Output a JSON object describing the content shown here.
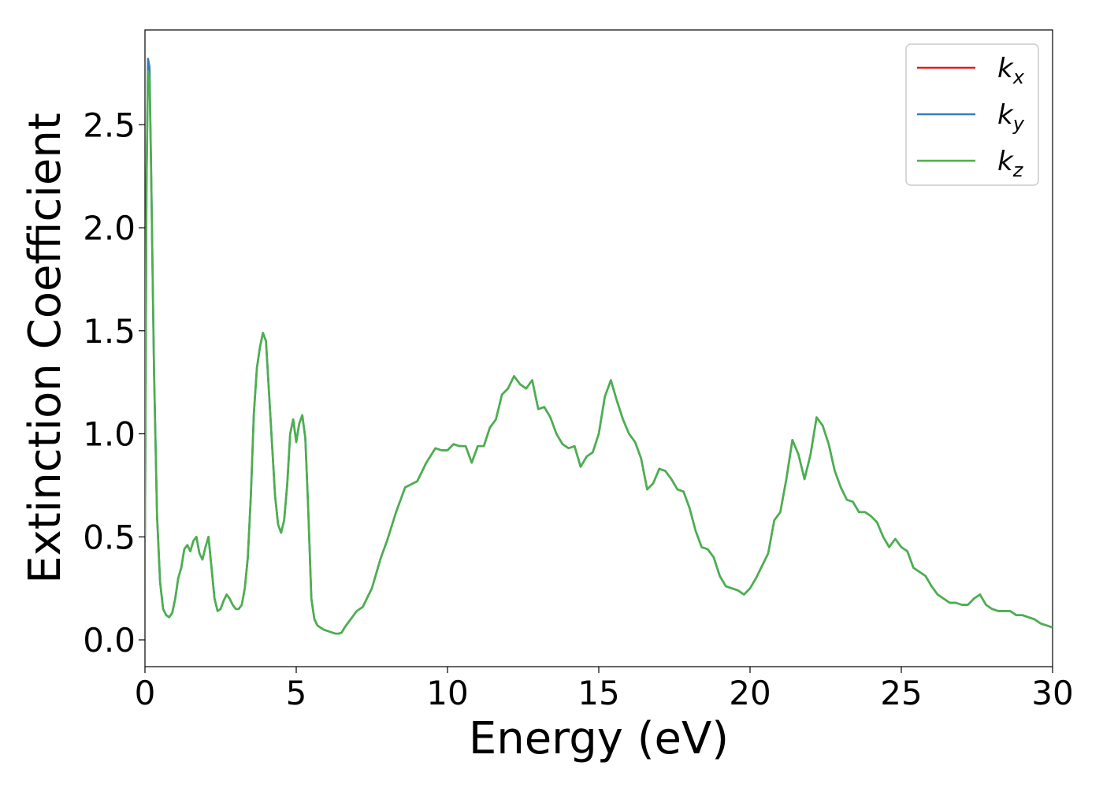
{
  "chart_data": {
    "type": "line",
    "title": "",
    "xlabel": "Energy (eV)",
    "ylabel": "Extinction Coefficient",
    "xlim": [
      0,
      30
    ],
    "ylim": [
      -0.13,
      2.96
    ],
    "xticks": [
      0,
      5,
      10,
      15,
      20,
      25,
      30
    ],
    "xtick_labels": [
      "0",
      "5",
      "10",
      "15",
      "20",
      "25",
      "30"
    ],
    "yticks": [
      0.0,
      0.5,
      1.0,
      1.5,
      2.0,
      2.5
    ],
    "ytick_labels": [
      "0.0",
      "0.5",
      "1.0",
      "1.5",
      "2.0",
      "2.5"
    ],
    "grid": false,
    "legend_position": "top-right",
    "series": [
      {
        "name": "k",
        "subscript": "x",
        "color": "#e41a1c",
        "x": [
          0,
          0.05,
          0.1,
          0.15,
          0.2,
          0.3,
          0.4,
          0.5,
          0.6,
          0.7,
          0.8,
          0.9,
          1.0,
          1.1,
          1.2,
          1.3,
          1.4,
          1.5,
          1.6,
          1.7,
          1.8,
          1.9,
          2.0,
          2.1,
          2.2,
          2.3,
          2.4,
          2.5,
          2.6,
          2.7,
          2.8,
          2.9,
          3.0,
          3.1,
          3.2,
          3.3,
          3.4,
          3.5,
          3.6,
          3.7,
          3.8,
          3.9,
          4.0,
          4.1,
          4.2,
          4.3,
          4.4,
          4.5,
          4.6,
          4.7,
          4.8,
          4.9,
          5.0,
          5.1,
          5.2,
          5.3,
          5.4,
          5.5,
          5.6,
          5.7,
          5.8,
          5.9,
          6.0,
          6.1,
          6.2,
          6.3,
          6.4,
          6.5,
          6.6,
          6.8,
          7.0,
          7.2,
          7.5,
          7.8,
          8.0,
          8.3,
          8.6,
          9.0,
          9.3,
          9.6,
          9.8,
          10.0,
          10.2,
          10.4,
          10.6,
          10.8,
          11.0,
          11.2,
          11.4,
          11.6,
          11.8,
          12.0,
          12.2,
          12.4,
          12.6,
          12.8,
          13.0,
          13.2,
          13.4,
          13.6,
          13.8,
          14.0,
          14.2,
          14.4,
          14.6,
          14.8,
          15.0,
          15.2,
          15.4,
          15.6,
          15.8,
          16.0,
          16.2,
          16.4,
          16.6,
          16.8,
          17.0,
          17.2,
          17.4,
          17.6,
          17.8,
          18.0,
          18.2,
          18.4,
          18.6,
          18.8,
          19.0,
          19.2,
          19.4,
          19.6,
          19.8,
          20.0,
          20.2,
          20.4,
          20.6,
          20.8,
          21.0,
          21.2,
          21.4,
          21.6,
          21.8,
          22.0,
          22.2,
          22.4,
          22.6,
          22.8,
          23.0,
          23.2,
          23.4,
          23.6,
          23.8,
          24.0,
          24.2,
          24.4,
          24.6,
          24.8,
          25.0,
          25.2,
          25.4,
          25.6,
          25.8,
          26.0,
          26.2,
          26.4,
          26.6,
          26.8,
          27.0,
          27.2,
          27.4,
          27.6,
          27.8,
          28.0,
          28.2,
          28.4,
          28.6,
          28.8,
          29.0,
          29.2,
          29.4,
          29.6,
          29.8,
          30.0
        ],
        "y": [
          0.5,
          2.2,
          2.78,
          2.75,
          2.3,
          1.3,
          0.6,
          0.28,
          0.15,
          0.12,
          0.11,
          0.13,
          0.2,
          0.3,
          0.35,
          0.44,
          0.46,
          0.43,
          0.48,
          0.5,
          0.42,
          0.39,
          0.45,
          0.5,
          0.35,
          0.2,
          0.14,
          0.15,
          0.19,
          0.22,
          0.2,
          0.17,
          0.15,
          0.15,
          0.17,
          0.25,
          0.4,
          0.7,
          1.1,
          1.32,
          1.42,
          1.49,
          1.45,
          1.2,
          0.95,
          0.7,
          0.56,
          0.52,
          0.58,
          0.75,
          1.0,
          1.07,
          0.96,
          1.05,
          1.09,
          0.98,
          0.62,
          0.2,
          0.1,
          0.07,
          0.06,
          0.05,
          0.045,
          0.04,
          0.035,
          0.03,
          0.03,
          0.035,
          0.06,
          0.1,
          0.14,
          0.16,
          0.25,
          0.4,
          0.48,
          0.62,
          0.74,
          0.77,
          0.86,
          0.93,
          0.92,
          0.92,
          0.95,
          0.94,
          0.94,
          0.86,
          0.94,
          0.94,
          1.03,
          1.07,
          1.19,
          1.22,
          1.28,
          1.24,
          1.22,
          1.26,
          1.12,
          1.13,
          1.08,
          1.0,
          0.95,
          0.93,
          0.94,
          0.84,
          0.89,
          0.91,
          1.0,
          1.18,
          1.26,
          1.16,
          1.07,
          1.0,
          0.96,
          0.88,
          0.73,
          0.76,
          0.83,
          0.82,
          0.78,
          0.73,
          0.72,
          0.64,
          0.53,
          0.45,
          0.44,
          0.4,
          0.31,
          0.26,
          0.25,
          0.24,
          0.22,
          0.25,
          0.3,
          0.36,
          0.42,
          0.58,
          0.62,
          0.78,
          0.97,
          0.9,
          0.78,
          0.9,
          1.08,
          1.04,
          0.95,
          0.82,
          0.74,
          0.68,
          0.67,
          0.62,
          0.62,
          0.6,
          0.57,
          0.5,
          0.45,
          0.49,
          0.45,
          0.43,
          0.35,
          0.33,
          0.31,
          0.26,
          0.22,
          0.2,
          0.18,
          0.18,
          0.17,
          0.17,
          0.2,
          0.22,
          0.17,
          0.15,
          0.14,
          0.14,
          0.14,
          0.12,
          0.12,
          0.11,
          0.1,
          0.08,
          0.07,
          0.06
        ],
        "draw": false
      },
      {
        "name": "k",
        "subscript": "y",
        "color": "#377eb8",
        "x": [
          0,
          0.05,
          0.1,
          0.15,
          0.2,
          0.3,
          0.4,
          0.5,
          0.6,
          0.7,
          0.8,
          0.9,
          1.0,
          1.1,
          1.2,
          1.3,
          1.4,
          1.5,
          1.6,
          1.7,
          1.8,
          1.9,
          2.0,
          2.1,
          2.2,
          2.3,
          2.4,
          2.5,
          2.6,
          2.7,
          2.8,
          2.9,
          3.0,
          3.1,
          3.2,
          3.3,
          3.4,
          3.5,
          3.6,
          3.7,
          3.8,
          3.9,
          4.0,
          4.1,
          4.2,
          4.3,
          4.4,
          4.5,
          4.6,
          4.7,
          4.8,
          4.9,
          5.0,
          5.1,
          5.2,
          5.3,
          5.4,
          5.5,
          5.6,
          5.7,
          5.8,
          5.9,
          6.0,
          6.1,
          6.2,
          6.3,
          6.4,
          6.5,
          6.6,
          6.8,
          7.0,
          7.2,
          7.5,
          7.8,
          8.0,
          8.3,
          8.6,
          9.0,
          9.3,
          9.6,
          9.8,
          10.0,
          10.2,
          10.4,
          10.6,
          10.8,
          11.0,
          11.2,
          11.4,
          11.6,
          11.8,
          12.0,
          12.2,
          12.4,
          12.6,
          12.8,
          13.0,
          13.2,
          13.4,
          13.6,
          13.8,
          14.0,
          14.2,
          14.4,
          14.6,
          14.8,
          15.0,
          15.2,
          15.4,
          15.6,
          15.8,
          16.0,
          16.2,
          16.4,
          16.6,
          16.8,
          17.0,
          17.2,
          17.4,
          17.6,
          17.8,
          18.0,
          18.2,
          18.4,
          18.6,
          18.8,
          19.0,
          19.2,
          19.4,
          19.6,
          19.8,
          20.0,
          20.2,
          20.4,
          20.6,
          20.8,
          21.0,
          21.2,
          21.4,
          21.6,
          21.8,
          22.0,
          22.2,
          22.4,
          22.6,
          22.8,
          23.0,
          23.2,
          23.4,
          23.6,
          23.8,
          24.0,
          24.2,
          24.4,
          24.6,
          24.8,
          25.0,
          25.2,
          25.4,
          25.6,
          25.8,
          26.0,
          26.2,
          26.4,
          26.6,
          26.8,
          27.0,
          27.2,
          27.4,
          27.6,
          27.8,
          28.0,
          28.2,
          28.4,
          28.6,
          28.8,
          29.0,
          29.2,
          29.4,
          29.6,
          29.8,
          30.0
        ],
        "y": [
          0.5,
          2.2,
          2.82,
          2.78,
          2.32,
          1.3,
          0.6,
          0.28,
          0.15,
          0.12,
          0.11,
          0.13,
          0.2,
          0.3,
          0.35,
          0.44,
          0.46,
          0.43,
          0.48,
          0.5,
          0.42,
          0.39,
          0.45,
          0.5,
          0.35,
          0.2,
          0.14,
          0.15,
          0.19,
          0.22,
          0.2,
          0.17,
          0.15,
          0.15,
          0.17,
          0.25,
          0.4,
          0.7,
          1.1,
          1.32,
          1.42,
          1.49,
          1.45,
          1.2,
          0.95,
          0.7,
          0.56,
          0.52,
          0.58,
          0.75,
          1.0,
          1.07,
          0.96,
          1.05,
          1.09,
          0.98,
          0.62,
          0.2,
          0.1,
          0.07,
          0.06,
          0.05,
          0.045,
          0.04,
          0.035,
          0.03,
          0.03,
          0.035,
          0.06,
          0.1,
          0.14,
          0.16,
          0.25,
          0.4,
          0.48,
          0.62,
          0.74,
          0.77,
          0.86,
          0.93,
          0.92,
          0.92,
          0.95,
          0.94,
          0.94,
          0.86,
          0.94,
          0.94,
          1.03,
          1.07,
          1.19,
          1.22,
          1.28,
          1.24,
          1.22,
          1.26,
          1.12,
          1.13,
          1.08,
          1.0,
          0.95,
          0.93,
          0.94,
          0.84,
          0.89,
          0.91,
          1.0,
          1.18,
          1.26,
          1.16,
          1.07,
          1.0,
          0.96,
          0.88,
          0.73,
          0.76,
          0.83,
          0.82,
          0.78,
          0.73,
          0.72,
          0.64,
          0.53,
          0.45,
          0.44,
          0.4,
          0.31,
          0.26,
          0.25,
          0.24,
          0.22,
          0.25,
          0.3,
          0.36,
          0.42,
          0.58,
          0.62,
          0.78,
          0.97,
          0.9,
          0.78,
          0.9,
          1.08,
          1.04,
          0.95,
          0.82,
          0.74,
          0.68,
          0.67,
          0.62,
          0.62,
          0.6,
          0.57,
          0.5,
          0.45,
          0.49,
          0.45,
          0.43,
          0.35,
          0.33,
          0.31,
          0.26,
          0.22,
          0.2,
          0.18,
          0.18,
          0.17,
          0.17,
          0.2,
          0.22,
          0.17,
          0.15,
          0.14,
          0.14,
          0.14,
          0.12,
          0.12,
          0.11,
          0.1,
          0.08,
          0.07,
          0.06
        ],
        "draw": true
      },
      {
        "name": "k",
        "subscript": "z",
        "color": "#4daf4a",
        "x": [
          0,
          0.05,
          0.1,
          0.15,
          0.2,
          0.3,
          0.4,
          0.5,
          0.6,
          0.7,
          0.8,
          0.9,
          1.0,
          1.1,
          1.2,
          1.3,
          1.4,
          1.5,
          1.6,
          1.7,
          1.8,
          1.9,
          2.0,
          2.1,
          2.2,
          2.3,
          2.4,
          2.5,
          2.6,
          2.7,
          2.8,
          2.9,
          3.0,
          3.1,
          3.2,
          3.3,
          3.4,
          3.5,
          3.6,
          3.7,
          3.8,
          3.9,
          4.0,
          4.1,
          4.2,
          4.3,
          4.4,
          4.5,
          4.6,
          4.7,
          4.8,
          4.9,
          5.0,
          5.1,
          5.2,
          5.3,
          5.4,
          5.5,
          5.6,
          5.7,
          5.8,
          5.9,
          6.0,
          6.1,
          6.2,
          6.3,
          6.4,
          6.5,
          6.6,
          6.8,
          7.0,
          7.2,
          7.5,
          7.8,
          8.0,
          8.3,
          8.6,
          9.0,
          9.3,
          9.6,
          9.8,
          10.0,
          10.2,
          10.4,
          10.6,
          10.8,
          11.0,
          11.2,
          11.4,
          11.6,
          11.8,
          12.0,
          12.2,
          12.4,
          12.6,
          12.8,
          13.0,
          13.2,
          13.4,
          13.6,
          13.8,
          14.0,
          14.2,
          14.4,
          14.6,
          14.8,
          15.0,
          15.2,
          15.4,
          15.6,
          15.8,
          16.0,
          16.2,
          16.4,
          16.6,
          16.8,
          17.0,
          17.2,
          17.4,
          17.6,
          17.8,
          18.0,
          18.2,
          18.4,
          18.6,
          18.8,
          19.0,
          19.2,
          19.4,
          19.6,
          19.8,
          20.0,
          20.2,
          20.4,
          20.6,
          20.8,
          21.0,
          21.2,
          21.4,
          21.6,
          21.8,
          22.0,
          22.2,
          22.4,
          22.6,
          22.8,
          23.0,
          23.2,
          23.4,
          23.6,
          23.8,
          24.0,
          24.2,
          24.4,
          24.6,
          24.8,
          25.0,
          25.2,
          25.4,
          25.6,
          25.8,
          26.0,
          26.2,
          26.4,
          26.6,
          26.8,
          27.0,
          27.2,
          27.4,
          27.6,
          27.8,
          28.0,
          28.2,
          28.4,
          28.6,
          28.8,
          29.0,
          29.2,
          29.4,
          29.6,
          29.8,
          30.0
        ],
        "y": [
          0.5,
          2.2,
          2.76,
          2.72,
          2.3,
          1.3,
          0.6,
          0.28,
          0.15,
          0.12,
          0.11,
          0.13,
          0.2,
          0.3,
          0.35,
          0.44,
          0.46,
          0.43,
          0.48,
          0.5,
          0.42,
          0.39,
          0.45,
          0.5,
          0.35,
          0.2,
          0.14,
          0.15,
          0.19,
          0.22,
          0.2,
          0.17,
          0.15,
          0.15,
          0.17,
          0.25,
          0.4,
          0.7,
          1.1,
          1.32,
          1.42,
          1.49,
          1.45,
          1.2,
          0.95,
          0.7,
          0.56,
          0.52,
          0.58,
          0.75,
          1.0,
          1.07,
          0.96,
          1.05,
          1.09,
          0.98,
          0.62,
          0.2,
          0.1,
          0.07,
          0.06,
          0.05,
          0.045,
          0.04,
          0.035,
          0.03,
          0.03,
          0.035,
          0.06,
          0.1,
          0.14,
          0.16,
          0.25,
          0.4,
          0.48,
          0.62,
          0.74,
          0.77,
          0.86,
          0.93,
          0.92,
          0.92,
          0.95,
          0.94,
          0.94,
          0.86,
          0.94,
          0.94,
          1.03,
          1.07,
          1.19,
          1.22,
          1.28,
          1.24,
          1.22,
          1.26,
          1.12,
          1.13,
          1.08,
          1.0,
          0.95,
          0.93,
          0.94,
          0.84,
          0.89,
          0.91,
          1.0,
          1.18,
          1.26,
          1.16,
          1.07,
          1.0,
          0.96,
          0.88,
          0.73,
          0.76,
          0.83,
          0.82,
          0.78,
          0.73,
          0.72,
          0.64,
          0.53,
          0.45,
          0.44,
          0.4,
          0.31,
          0.26,
          0.25,
          0.24,
          0.22,
          0.25,
          0.3,
          0.36,
          0.42,
          0.58,
          0.62,
          0.78,
          0.97,
          0.9,
          0.78,
          0.9,
          1.08,
          1.04,
          0.95,
          0.82,
          0.74,
          0.68,
          0.67,
          0.62,
          0.62,
          0.6,
          0.57,
          0.5,
          0.45,
          0.49,
          0.45,
          0.43,
          0.35,
          0.33,
          0.31,
          0.26,
          0.22,
          0.2,
          0.18,
          0.18,
          0.17,
          0.17,
          0.2,
          0.22,
          0.17,
          0.15,
          0.14,
          0.14,
          0.14,
          0.12,
          0.12,
          0.11,
          0.1,
          0.08,
          0.07,
          0.06
        ],
        "draw": true
      }
    ]
  }
}
